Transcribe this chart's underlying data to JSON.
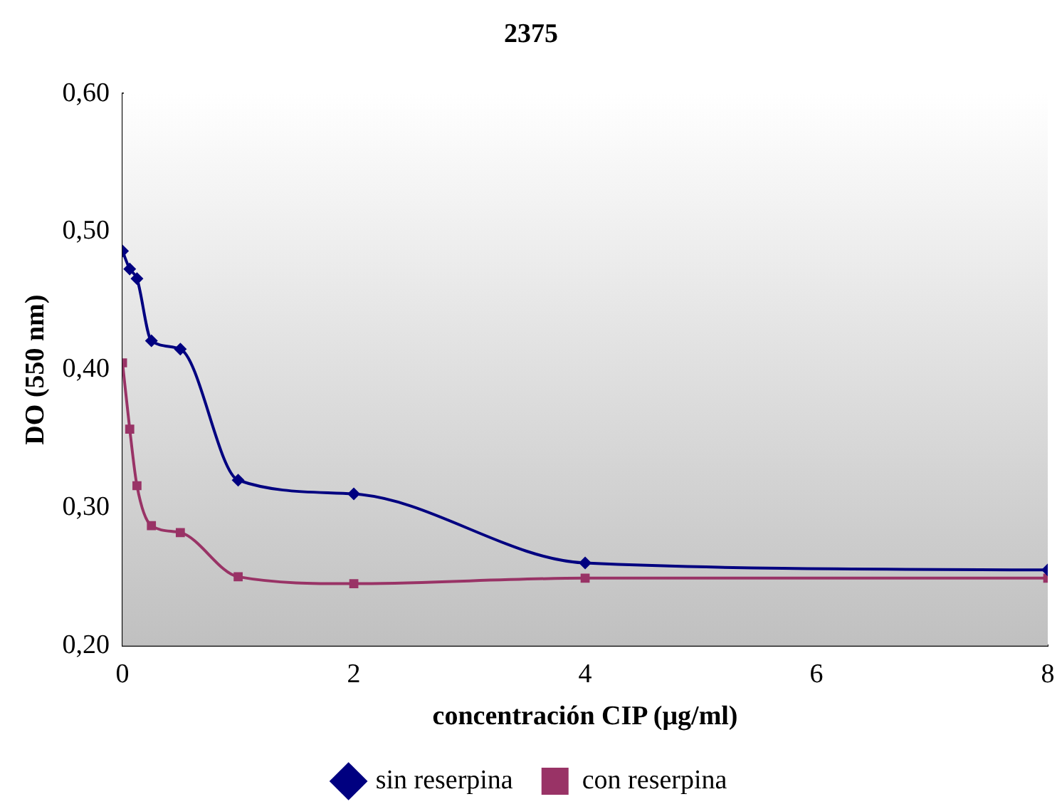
{
  "chart_data": {
    "type": "line",
    "title": "2375",
    "xlabel": "concentración CIP (μg/ml)",
    "ylabel": "DO (550 nm)",
    "x": [
      0,
      0.0625,
      0.125,
      0.25,
      0.5,
      1,
      2,
      4,
      8
    ],
    "series": [
      {
        "name": "sin reserpina",
        "color": "#000080",
        "marker": "diamond",
        "values": [
          0.486,
          0.473,
          0.466,
          0.421,
          0.415,
          0.32,
          0.31,
          0.26,
          0.255
        ]
      },
      {
        "name": "con reserpina",
        "color": "#993366",
        "marker": "square",
        "values": [
          0.405,
          0.357,
          0.316,
          0.287,
          0.282,
          0.25,
          0.245,
          0.249,
          0.249
        ]
      }
    ],
    "xlim": [
      0,
      8
    ],
    "xticks": [
      0,
      2,
      4,
      6,
      8
    ],
    "ylim": [
      0.2,
      0.6
    ],
    "yticks": [
      {
        "value": 0.2,
        "label": "0,20"
      },
      {
        "value": 0.3,
        "label": "0,30"
      },
      {
        "value": 0.4,
        "label": "0,40"
      },
      {
        "value": 0.5,
        "label": "0,50"
      },
      {
        "value": 0.6,
        "label": "0,60"
      }
    ],
    "grid": false,
    "legend": "bottom",
    "line_style": "solid"
  }
}
